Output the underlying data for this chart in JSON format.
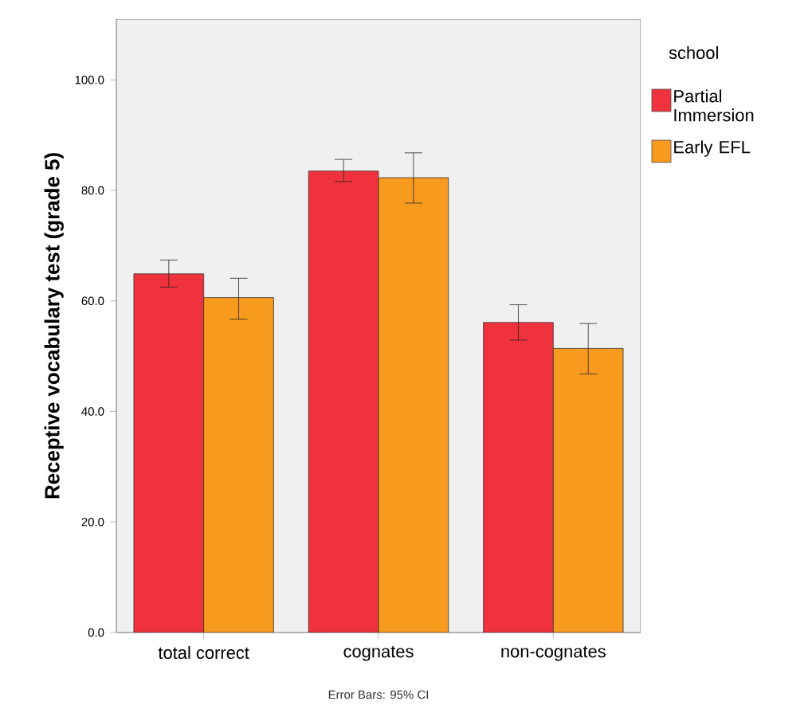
{
  "chart_data": {
    "type": "bar",
    "ylabel": "Receptive vocabulary test (grade 5)",
    "legend_title": "school",
    "categories": [
      "total correct",
      "cognates",
      "non-cognates"
    ],
    "series": [
      {
        "name": "Partial Immersion",
        "color": "#f0323c",
        "values": [
          64.9,
          83.5,
          56.1
        ],
        "errors": [
          [
            62.5,
            67.4
          ],
          [
            81.6,
            85.6
          ],
          [
            52.9,
            59.3
          ]
        ]
      },
      {
        "name": "Early EFL",
        "color": "#f89a1e",
        "values": [
          60.6,
          82.3,
          51.4
        ],
        "errors": [
          [
            56.7,
            64.1
          ],
          [
            77.7,
            86.8
          ],
          [
            46.8,
            55.9
          ]
        ]
      }
    ],
    "ylim": [
      0,
      111
    ],
    "yticks": [
      {
        "value": 0,
        "label": "0.0"
      },
      {
        "value": 20,
        "label": "20.0"
      },
      {
        "value": 40,
        "label": "40.0"
      },
      {
        "value": 60,
        "label": "60.0"
      },
      {
        "value": 80,
        "label": "80.0"
      },
      {
        "value": 100,
        "label": "100.0"
      }
    ],
    "grid": false,
    "legend": "right",
    "annotations": [
      "Error Bars: 95% CI"
    ]
  }
}
